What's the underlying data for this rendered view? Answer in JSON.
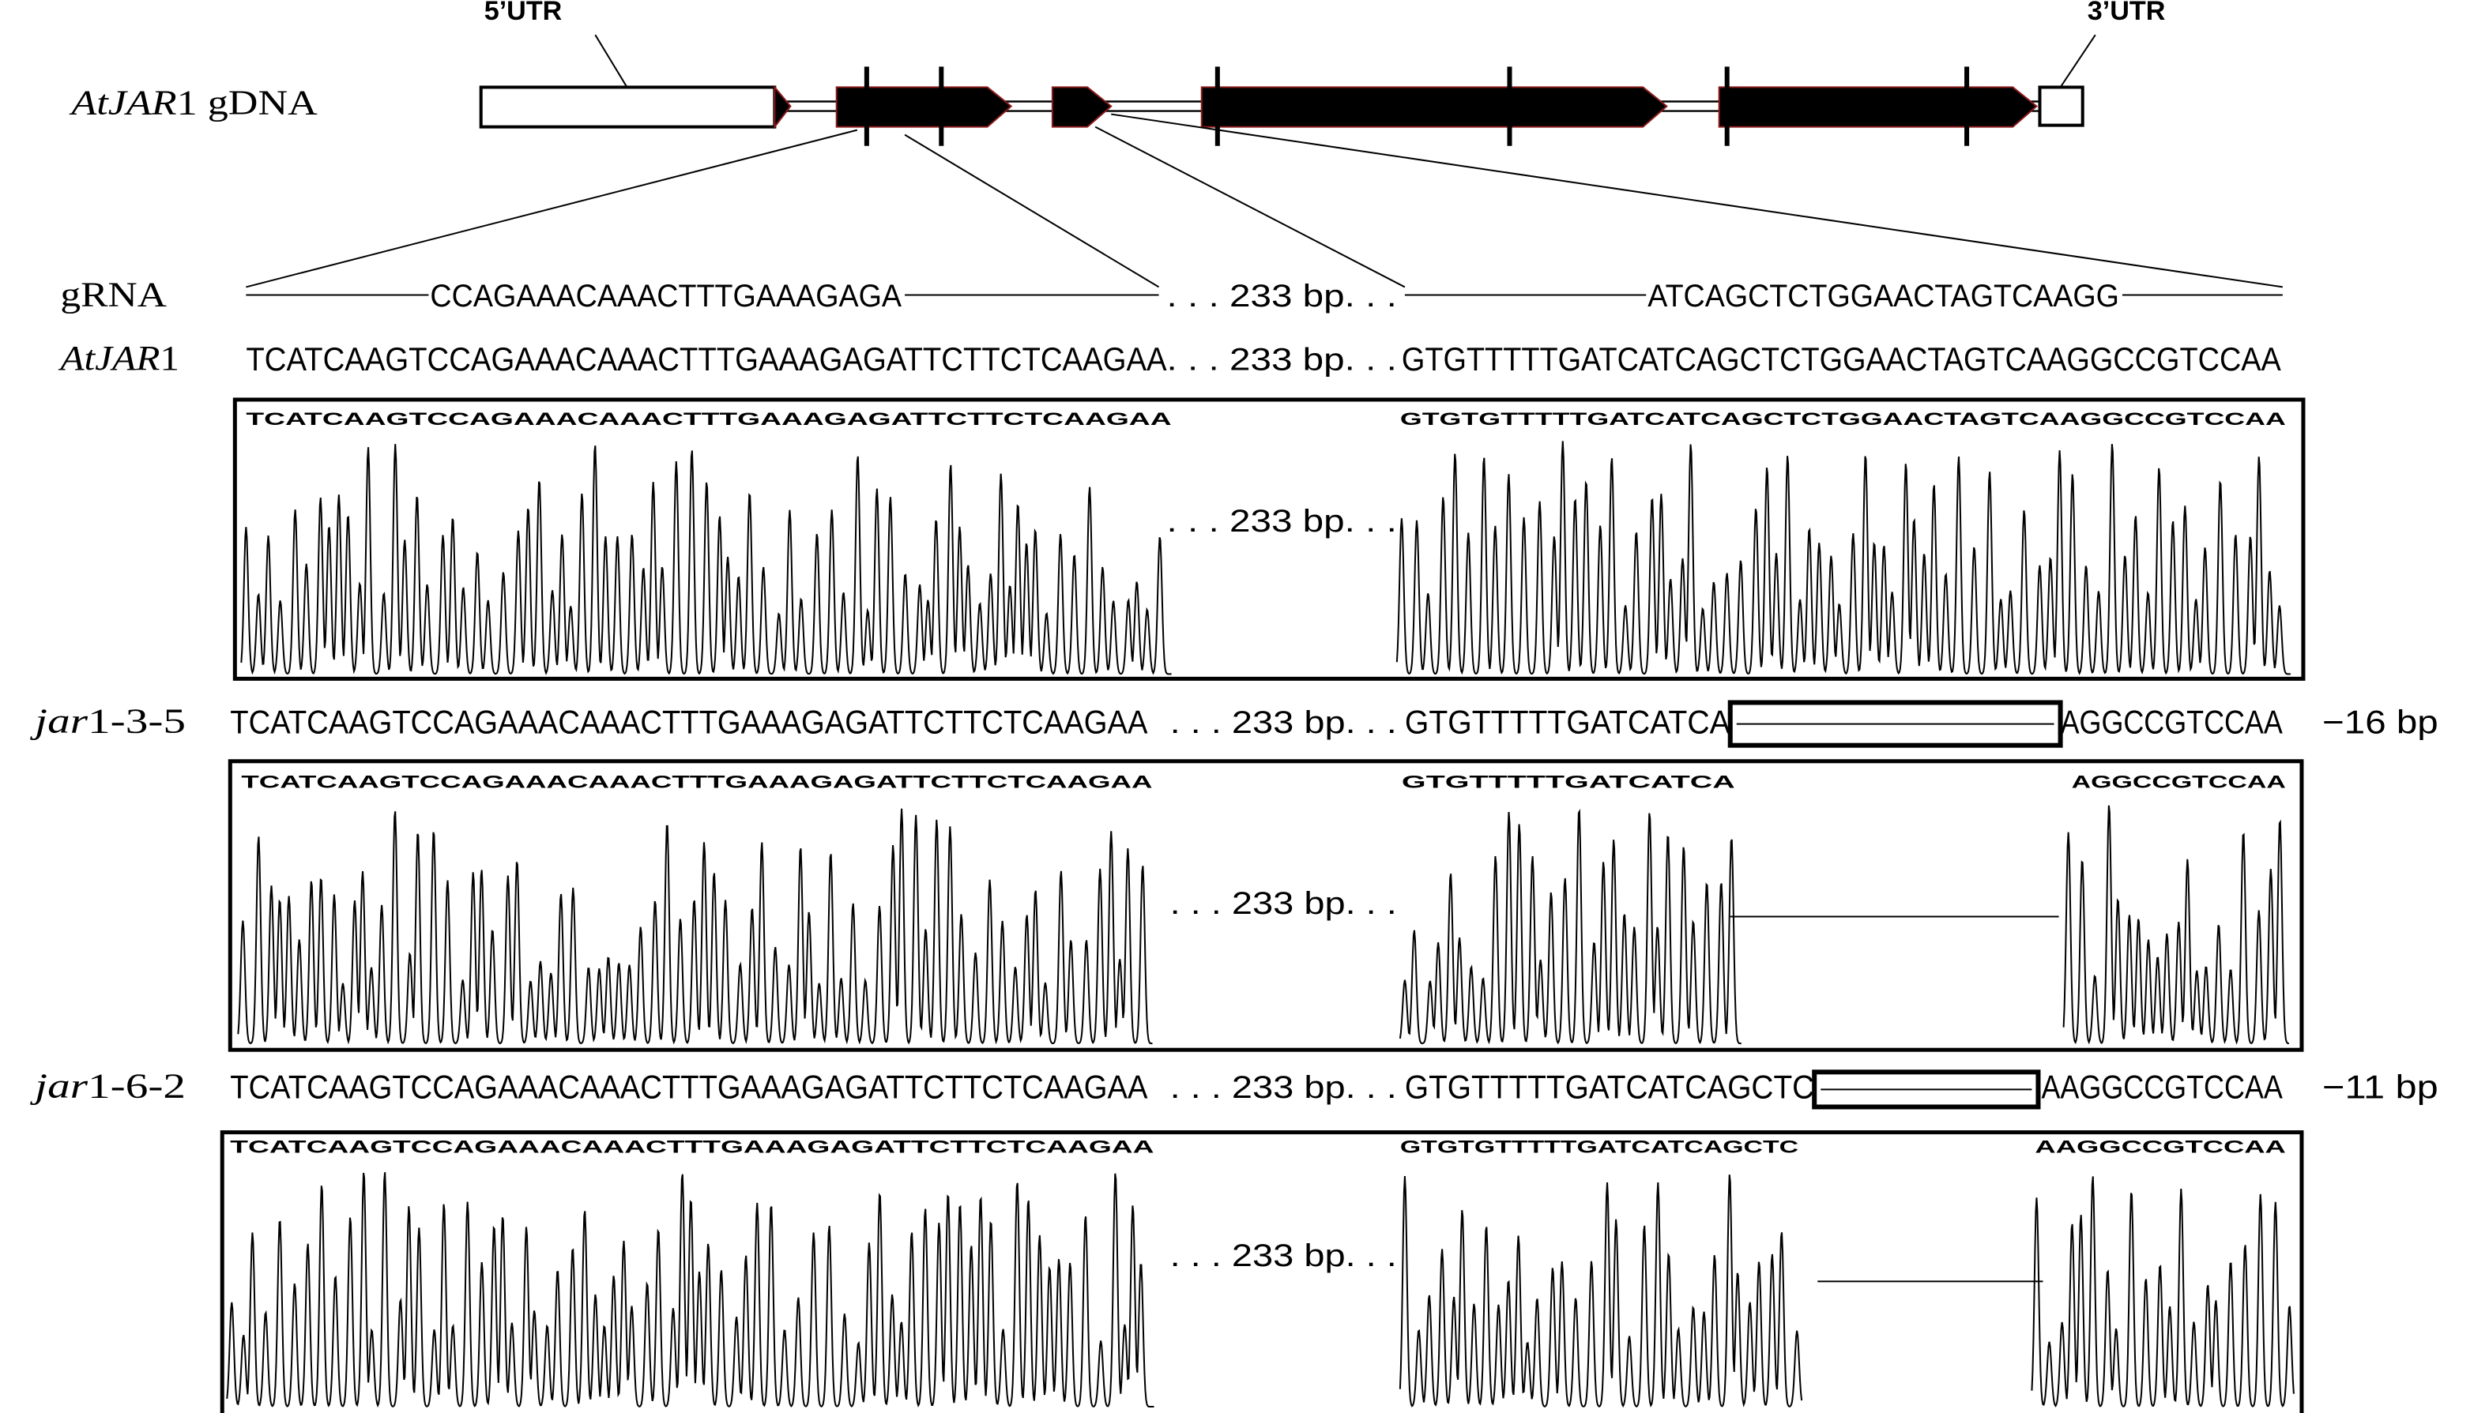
{
  "gene": {
    "name_italic": "AtJAR",
    "name_rest": "1 gDNA",
    "utr5": "5’UTR",
    "utr3": "3’UTR"
  },
  "gap": ". . . 233 bp. . .",
  "grna": {
    "label": "gRNA",
    "left": "CCAGAAACAAACTTTGAAAGAGA",
    "right": "ATCAGCTCTGGAACTAGTCAAGG"
  },
  "wild_type": {
    "label_italic": "AtJAR",
    "label_rest": "1",
    "left": "TCATCAAGTCCAGAAACAAACTTTGAAAGAGATTCTTCTCAAGAA",
    "right": "GTGTTTTTGATCATCAGCTCTGGAACTAGTCAAGGCCGTCCAA",
    "trace_left": "TCATCAAGTCCAGAAACAAACTTTGAAAGAGATTCTTCTCAAGAA",
    "trace_right": "GTGTGTTTTTGATCATCAGCTCTGGAACTAGTCAAGGCCGTCCAA"
  },
  "mutants": [
    {
      "label_italic": "jar",
      "label_rest": "1-3-5",
      "left": "TCATCAAGTCCAGAAACAAACTTTGAAAGAGATTCTTCTCAAGAA",
      "right_before": "GTGTTTTTGATCATCA",
      "right_after": "AGGCCGTCCAA",
      "deletion": "−16 bp",
      "trace_left": "TCATCAAGTCCAGAAACAAACTTTGAAAGAGATTCTTCTCAAGAA",
      "trace_right_before": "GTGTTTTTGATCATCA",
      "trace_right_after": "AGGCCGTCCAA"
    },
    {
      "label_italic": "jar",
      "label_rest": "1-6-2",
      "left": "TCATCAAGTCCAGAAACAAACTTTGAAAGAGATTCTTCTCAAGAA",
      "right_before": "GTGTTTTTGATCATCAGCTC",
      "right_after": "AAGGCCGTCCAA",
      "deletion": "−11 bp",
      "trace_left": "TCATCAAGTCCAGAAACAAACTTTGAAAGAGATTCTTCTCAAGAA",
      "trace_right_before": "GTGTGTTTTTGATCATCAGCTC",
      "trace_right_after": "AAGGCCGTCCAA"
    }
  ]
}
